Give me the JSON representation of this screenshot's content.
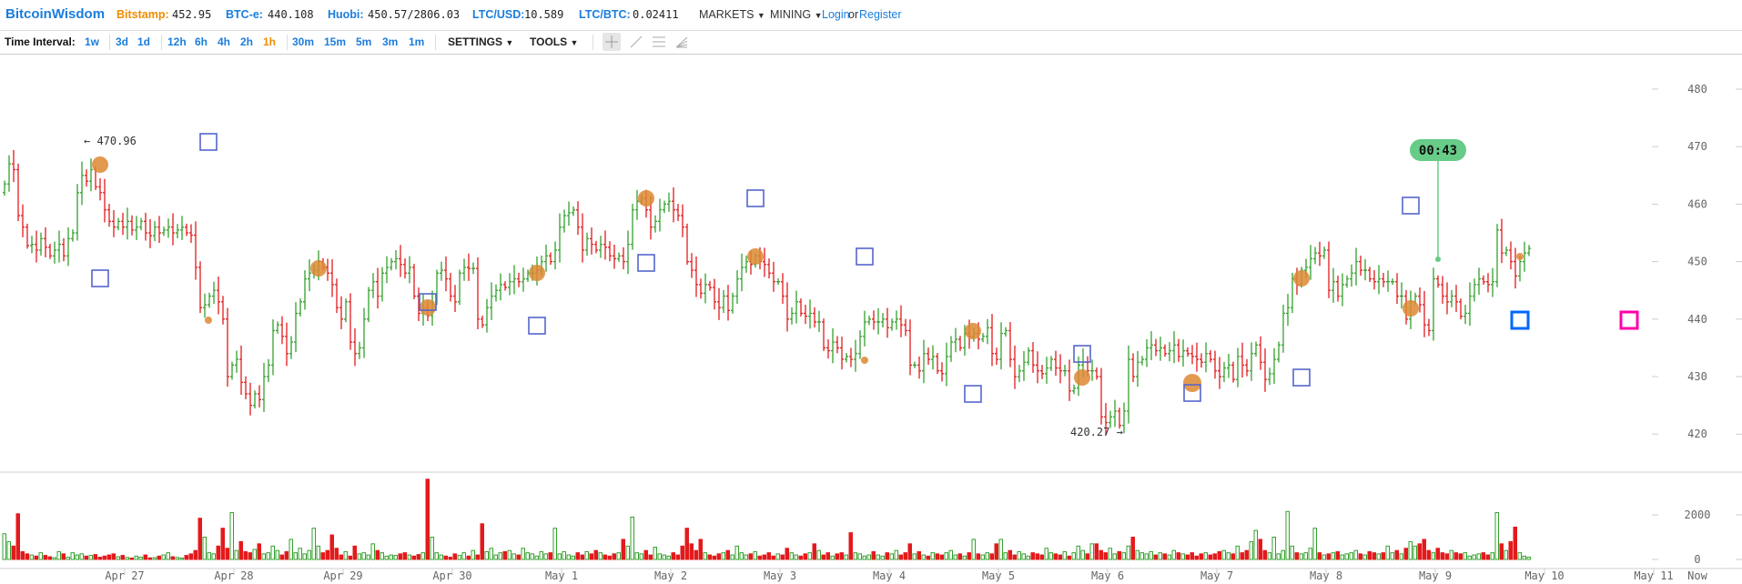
{
  "header": {
    "logo": "BitcoinWisdom",
    "tickers": [
      {
        "label": "Bitstamp:",
        "value": "452.95",
        "color": "#f08c00"
      },
      {
        "label": "BTC-e:",
        "value": "440.108",
        "color": "#1a7ddc"
      },
      {
        "label": "Huobi:",
        "value": "450.57/2806.03",
        "color": "#1a7ddc"
      },
      {
        "label": "LTC/USD:",
        "value": "10.589",
        "color": "#1a7ddc"
      },
      {
        "label": "LTC/BTC:",
        "value": "0.02411",
        "color": "#1a7ddc"
      }
    ],
    "menus": [
      "MARKETS",
      "MINING"
    ],
    "login": "Login",
    "or": "or",
    "register": "Register"
  },
  "toolbar": {
    "time_interval_label": "Time Interval:",
    "intervals": [
      "1w",
      "3d",
      "1d",
      "12h",
      "6h",
      "4h",
      "2h",
      "1h",
      "30m",
      "15m",
      "5m",
      "3m",
      "1m"
    ],
    "active_interval": "1h",
    "settings": "SETTINGS",
    "tools": "TOOLS",
    "drawing_tools": [
      "crosshair-icon",
      "line-icon",
      "horizontal-lines-icon",
      "fib-fan-icon"
    ]
  },
  "chart_data": {
    "type": "ohlc",
    "interval": "1h",
    "y_ticks": [
      480,
      470,
      460,
      450,
      440,
      430,
      420
    ],
    "volume_ticks": [
      2000,
      0
    ],
    "x_labels": [
      "Apr 27",
      "Apr 28",
      "Apr 29",
      "Apr 30",
      "May 1",
      "May 2",
      "May 3",
      "May 4",
      "May 5",
      "May 6",
      "May 7",
      "May 8",
      "May 9",
      "May 10",
      "May 11"
    ],
    "now_label": "Now",
    "max_label": "← 470.96",
    "min_label": "420.27 →",
    "countdown": "00:43",
    "colors": {
      "up": "#33a02c",
      "down": "#e31a1c",
      "marker": "#5566cc",
      "trade": "#dd8833",
      "countdown": "#66cc88",
      "current": "#0066ff",
      "target": "#ff00aa"
    },
    "close": [
      463.5,
      467,
      466,
      458,
      456,
      452.8,
      453,
      452,
      454,
      452.5,
      451,
      452,
      453,
      451,
      454,
      455,
      462,
      465,
      464,
      466,
      463,
      462,
      459,
      457,
      456,
      457,
      456,
      457,
      455.5,
      456,
      457,
      455,
      454.5,
      456,
      455,
      455.5,
      456,
      455,
      455.5,
      456,
      455,
      454.6,
      449,
      442,
      442.5,
      444,
      445,
      443,
      440,
      430,
      432,
      433,
      429,
      427,
      425,
      427,
      426,
      430,
      432,
      438,
      439,
      437,
      434,
      436,
      441,
      443,
      447,
      448,
      448.5,
      450,
      449,
      448,
      446,
      442,
      440,
      443,
      436,
      434,
      435,
      440,
      445,
      446.5,
      444,
      448,
      449,
      450,
      450.5,
      449.5,
      448,
      449,
      444,
      441,
      442,
      440.6,
      443,
      448,
      448.5,
      447,
      444,
      443,
      448,
      449,
      448.8,
      448.8,
      440,
      439,
      442,
      444,
      445,
      446,
      445.5,
      446.5,
      447,
      446.5,
      447,
      448,
      448,
      448.5,
      450,
      451,
      450,
      452,
      456,
      458,
      458.5,
      459,
      456,
      452,
      454,
      453,
      452,
      453,
      452.5,
      451,
      450.5,
      451,
      450,
      453,
      459,
      460.5,
      461,
      459,
      456,
      457,
      459,
      460,
      460.5,
      459,
      458,
      456,
      450,
      448.5,
      446,
      444.5,
      446,
      445.5,
      443,
      442,
      444,
      441.5,
      444,
      447,
      449,
      450,
      449.5,
      451,
      450,
      449.5,
      448,
      446.5,
      446.5,
      444,
      440,
      441,
      443,
      441,
      440.5,
      441,
      439.5,
      439.5,
      435,
      434.5,
      436,
      435,
      433,
      433.5,
      433,
      434,
      437,
      439.5,
      440,
      439.5,
      439.5,
      440,
      438.5,
      439.5,
      440,
      439,
      438,
      432,
      432,
      431,
      434,
      433,
      433.5,
      431,
      430.5,
      433.5,
      436,
      436.5,
      435,
      437.5,
      437,
      437.5,
      436.5,
      437,
      438.5,
      434,
      433,
      437.5,
      438,
      433,
      430,
      431,
      432.5,
      434.5,
      432,
      431,
      430.5,
      431.5,
      433,
      431.5,
      431,
      431,
      427.5,
      428,
      432,
      432.5,
      431,
      431,
      430,
      423,
      422,
      423,
      424,
      421.5,
      424,
      433,
      430,
      432.5,
      433,
      435,
      435.5,
      434.5,
      435,
      434,
      434.5,
      435.5,
      433.5,
      434.5,
      434,
      433.5,
      433,
      432.5,
      434,
      433,
      431,
      430,
      431.5,
      432,
      429.5,
      433.5,
      432,
      431,
      434,
      435.5,
      432.5,
      429.5,
      430.5,
      433,
      435.5,
      441,
      442,
      447,
      446,
      448.5,
      449,
      450.5,
      451.5,
      451,
      452,
      445,
      446.5,
      444,
      446,
      447,
      448,
      450,
      448.5,
      448.5,
      447,
      446.5,
      447,
      446.5,
      446.5,
      446.5,
      444,
      444,
      440,
      443,
      444,
      442.5,
      439,
      438,
      447,
      446,
      444,
      443,
      444,
      443,
      440.5,
      441,
      444,
      446,
      447,
      446.5,
      446,
      446.5,
      455.5,
      451.5,
      452,
      450,
      447.5,
      450,
      451.5,
      452.3
    ],
    "volume": [
      1150,
      800,
      600,
      2050,
      350,
      250,
      200,
      150,
      300,
      180,
      120,
      80,
      350,
      250,
      100,
      300,
      200,
      250,
      150,
      180,
      220,
      100,
      150,
      200,
      250,
      120,
      180,
      90,
      60,
      150,
      100,
      200,
      70,
      80,
      150,
      200,
      300,
      120,
      90,
      60,
      180,
      250,
      400,
      1850,
      1000,
      300,
      250,
      600,
      1400,
      500,
      2100,
      400,
      800,
      350,
      300,
      450,
      700,
      250,
      300,
      600,
      400,
      200,
      350,
      900,
      300,
      500,
      250,
      400,
      1400,
      600,
      300,
      400,
      1100,
      500,
      200,
      350,
      150,
      600,
      250,
      300,
      200,
      700,
      400,
      300,
      150,
      200,
      180,
      250,
      300,
      200,
      150,
      220,
      300,
      3600,
      1000,
      300,
      200,
      150,
      100,
      250,
      180,
      300,
      150,
      400,
      200,
      1600,
      350,
      500,
      200,
      300,
      350,
      400,
      250,
      200,
      500,
      300,
      250,
      150,
      350,
      250,
      300,
      1400,
      250,
      350,
      200,
      150,
      300,
      200,
      350,
      250,
      400,
      300,
      200,
      150,
      250,
      300,
      900,
      600,
      1900,
      300,
      250,
      400,
      200,
      550,
      250,
      200,
      150,
      300,
      200,
      600,
      1400,
      700,
      400,
      900,
      300,
      200,
      150,
      250,
      300,
      400,
      200,
      600,
      300,
      200,
      250,
      350,
      150,
      200,
      300,
      150,
      250,
      200,
      500,
      300,
      200,
      150,
      250,
      300,
      700,
      400,
      200,
      300,
      150,
      250,
      300,
      200,
      1200,
      300,
      250,
      150,
      200,
      350,
      200,
      150,
      300,
      250,
      400,
      200,
      300,
      700,
      250,
      350,
      200,
      150,
      300,
      250,
      200,
      300,
      400,
      200,
      250,
      150,
      300,
      900,
      250,
      200,
      300,
      250,
      700,
      900,
      300,
      400,
      200,
      350,
      250,
      150,
      300,
      250,
      200,
      500,
      300,
      250,
      200,
      350,
      150,
      300,
      600,
      400,
      250,
      700,
      700,
      400,
      300,
      500,
      250,
      350,
      300,
      600,
      1000,
      400,
      300,
      250,
      350,
      200,
      300,
      250,
      200,
      400,
      300,
      250,
      200,
      300,
      150,
      250,
      300,
      200,
      250,
      350,
      400,
      300,
      250,
      600,
      300,
      400,
      800,
      1300,
      900,
      400,
      300,
      1000,
      250,
      400,
      2150,
      600,
      300,
      250,
      300,
      500,
      1400,
      300,
      200,
      250,
      300,
      350,
      200,
      250,
      300,
      400,
      250,
      200,
      350,
      300,
      250,
      300,
      600,
      300,
      400,
      250,
      500,
      800,
      600,
      700,
      900,
      400,
      300,
      500,
      300,
      250,
      400,
      300,
      250,
      300,
      150,
      200,
      250,
      300,
      200,
      300,
      2100,
      700,
      400,
      800,
      1450,
      300,
      150,
      100
    ]
  }
}
